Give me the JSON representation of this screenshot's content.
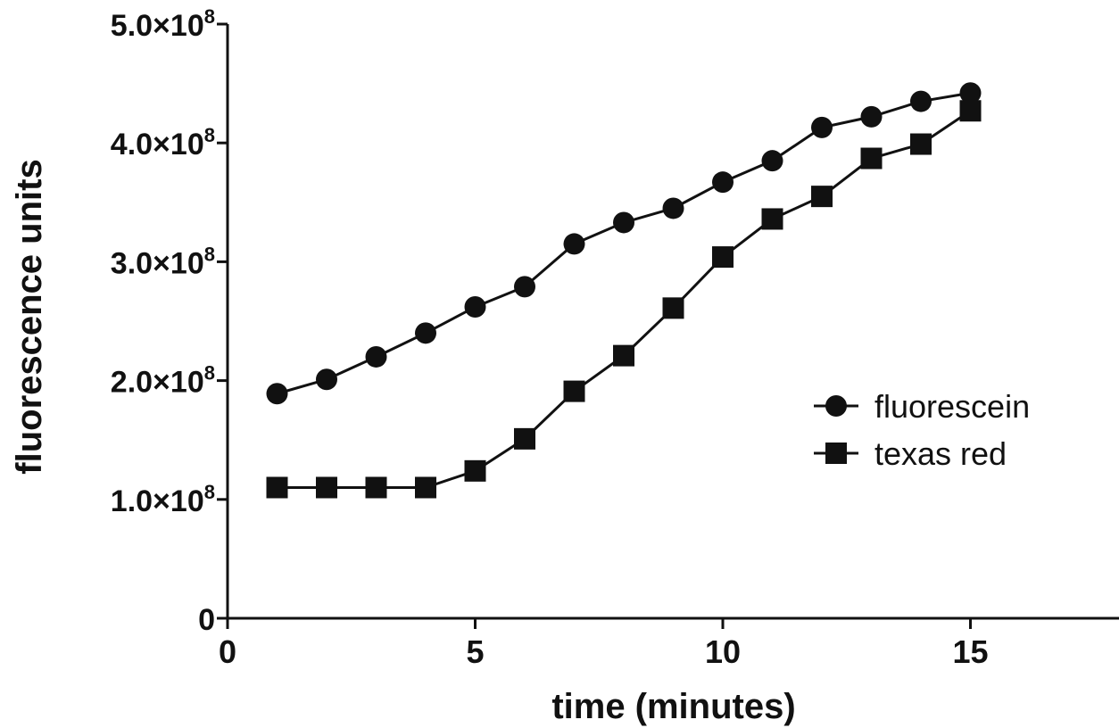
{
  "chart_data": {
    "type": "line",
    "title": "",
    "xlabel": "time (minutes)",
    "ylabel": "fluorescence units",
    "xlim": [
      0,
      18
    ],
    "ylim": [
      0,
      500000000
    ],
    "x_ticks": [
      {
        "value": 0,
        "label": "0"
      },
      {
        "value": 5,
        "label": "5"
      },
      {
        "value": 10,
        "label": "10"
      },
      {
        "value": 15,
        "label": "15"
      }
    ],
    "y_ticks": [
      {
        "value": 0,
        "mantissa": "0",
        "exponent": ""
      },
      {
        "value": 100000000,
        "mantissa": "1.0×10",
        "exponent": "8"
      },
      {
        "value": 200000000,
        "mantissa": "2.0×10",
        "exponent": "8"
      },
      {
        "value": 300000000,
        "mantissa": "3.0×10",
        "exponent": "8"
      },
      {
        "value": 400000000,
        "mantissa": "4.0×10",
        "exponent": "8"
      },
      {
        "value": 500000000,
        "mantissa": "5.0×10",
        "exponent": "8"
      }
    ],
    "grid": false,
    "legend_position": "right",
    "x": [
      1,
      2,
      3,
      4,
      5,
      6,
      7,
      8,
      9,
      10,
      11,
      12,
      13,
      14,
      15
    ],
    "series": [
      {
        "name": "fluorescein",
        "marker": "circle",
        "color": "#111111",
        "values": [
          189000000,
          201000000,
          220000000,
          240000000,
          262000000,
          279000000,
          315000000,
          333000000,
          345000000,
          367000000,
          385000000,
          413000000,
          422000000,
          435000000,
          442000000
        ]
      },
      {
        "name": "texas red",
        "marker": "square",
        "color": "#111111",
        "values": [
          110000000,
          110000000,
          110000000,
          110000000,
          124000000,
          151000000,
          191000000,
          221000000,
          261000000,
          304000000,
          336000000,
          355000000,
          387000000,
          399000000,
          427000000
        ]
      }
    ]
  }
}
